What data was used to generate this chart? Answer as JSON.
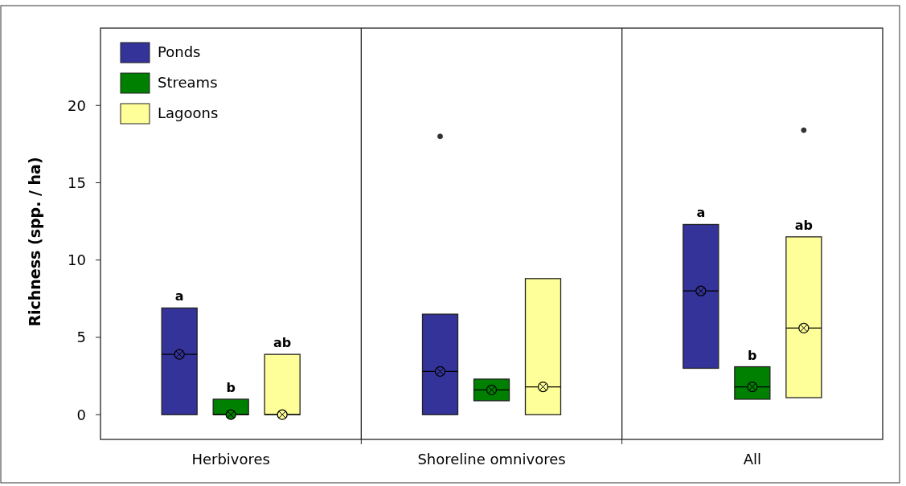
{
  "chart_data": {
    "type": "box",
    "categories": [
      "Herbivores",
      "Shoreline omnivores",
      "All"
    ],
    "ylabel": "Richness (spp. / ha)",
    "ylim": [
      -1.6,
      25
    ],
    "yticks": [
      0,
      5,
      10,
      15,
      20
    ],
    "grid": false,
    "legend": "top left",
    "marker": "cross",
    "series": [
      {
        "name": "Ponds",
        "color": "#333399",
        "boxes": [
          {
            "low": 0,
            "q1": 0,
            "median": 3.9,
            "q3": 6.9,
            "high": 6.9,
            "mean": 3.9
          },
          {
            "low": 0,
            "q1": 0,
            "median": 2.8,
            "q3": 6.5,
            "high": 6.5,
            "mean": 2.8,
            "outliers": [
              18.0
            ]
          },
          {
            "low": 3.0,
            "q1": 3.0,
            "median": 8.0,
            "q3": 12.3,
            "high": 12.3,
            "mean": 8.0
          }
        ]
      },
      {
        "name": "Streams",
        "color": "#008000",
        "boxes": [
          {
            "low": 0,
            "q1": 0,
            "median": 0,
            "q3": 1.0,
            "high": 1.0,
            "mean": 0
          },
          {
            "low": 0.9,
            "q1": 0.9,
            "median": 1.6,
            "q3": 2.3,
            "high": 2.3,
            "mean": 1.6
          },
          {
            "low": 1.0,
            "q1": 1.0,
            "median": 1.8,
            "q3": 3.1,
            "high": 3.1,
            "mean": 1.8
          }
        ]
      },
      {
        "name": "Lagoons",
        "color": "#ffff99",
        "boxes": [
          {
            "low": 0,
            "q1": 0,
            "median": 0,
            "q3": 3.9,
            "high": 3.9,
            "mean": 0
          },
          {
            "low": 0,
            "q1": 0,
            "median": 1.8,
            "q3": 8.8,
            "high": 8.8,
            "mean": 1.8
          },
          {
            "low": 1.1,
            "q1": 1.1,
            "median": 5.6,
            "q3": 11.5,
            "high": 11.5,
            "mean": 5.6,
            "outliers": [
              18.4
            ]
          }
        ]
      }
    ],
    "annotations": [
      "a",
      "b",
      "ab",
      "a",
      "b",
      "ab"
    ]
  }
}
